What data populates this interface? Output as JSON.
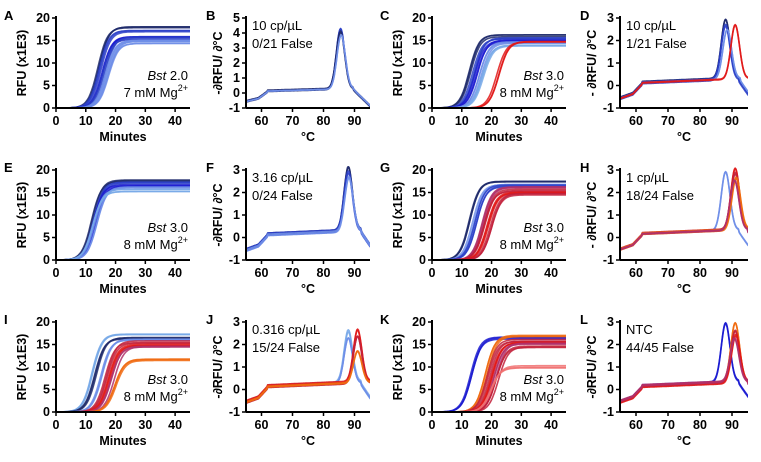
{
  "panels": [
    {
      "letter": "A",
      "kind": "amp",
      "col": 0,
      "row": 0,
      "annot_bst": "Bst",
      "annot_ver": " 2.0",
      "annot_mg": "7 mM Mg",
      "annot_sup": "2+"
    },
    {
      "letter": "B",
      "kind": "melt",
      "col": 1,
      "row": 0,
      "annot1": "10 cp/µL",
      "annot2": "0/21 False"
    },
    {
      "letter": "C",
      "kind": "amp",
      "col": 2,
      "row": 0,
      "annot_bst": "Bst",
      "annot_ver": " 3.0",
      "annot_mg": "8 mM Mg",
      "annot_sup": "2+"
    },
    {
      "letter": "D",
      "kind": "melt",
      "col": 3,
      "row": 0,
      "annot1": "10 cp/µL",
      "annot2": "1/21 False"
    },
    {
      "letter": "E",
      "kind": "amp",
      "col": 0,
      "row": 1,
      "annot_bst": "Bst",
      "annot_ver": " 3.0",
      "annot_mg": "8 mM Mg",
      "annot_sup": "2+"
    },
    {
      "letter": "F",
      "kind": "melt",
      "col": 1,
      "row": 1,
      "annot1": "3.16 cp/µL",
      "annot2": "0/24 False"
    },
    {
      "letter": "G",
      "kind": "amp",
      "col": 2,
      "row": 1,
      "annot_bst": "Bst",
      "annot_ver": " 3.0",
      "annot_mg": "8 mM Mg",
      "annot_sup": "2+"
    },
    {
      "letter": "H",
      "kind": "melt",
      "col": 3,
      "row": 1,
      "annot1": "1 cp/µL",
      "annot2": "18/24 False"
    },
    {
      "letter": "I",
      "kind": "amp",
      "col": 0,
      "row": 2,
      "annot_bst": "Bst",
      "annot_ver": " 3.0",
      "annot_mg": "8 mM Mg",
      "annot_sup": "2+"
    },
    {
      "letter": "J",
      "kind": "melt",
      "col": 1,
      "row": 2,
      "annot1": "0.316 cp/µL",
      "annot2": "15/24 False"
    },
    {
      "letter": "K",
      "kind": "amp",
      "col": 2,
      "row": 2,
      "annot_bst": "Bst",
      "annot_ver": " 3.0",
      "annot_mg": "8 mM Mg",
      "annot_sup": "2+"
    },
    {
      "letter": "L",
      "kind": "melt",
      "col": 3,
      "row": 2,
      "annot1": "NTC",
      "annot2": "44/45 False"
    }
  ],
  "axes": {
    "amp_ylabel": "RFU (x1E3)",
    "amp_xlabel": "Minutes",
    "melt_ylabel": "-∂RFU/ ∂°C",
    "melt_xlabel": "°C"
  },
  "colors": {
    "navy": "#1f2a6b",
    "blue": "#2b3fc8",
    "royal": "#1a1ad0",
    "light_blue": "#6f8ee8",
    "sky": "#78a9e8",
    "red": "#e01818",
    "crimson": "#c2203a",
    "salmon": "#f07070",
    "orange": "#f06a10",
    "magenta": "#b0306a"
  },
  "chart_data": [
    {
      "panel": "A",
      "type": "line",
      "xlabel": "Minutes",
      "ylabel": "RFU (x1E3)",
      "xlim": [
        0,
        45
      ],
      "ylim": [
        0,
        20
      ],
      "xticks": [
        0,
        10,
        20,
        30,
        40
      ],
      "yticks": [
        0,
        5,
        10,
        15,
        20
      ],
      "series": [
        {
          "color": "#1f2a6b",
          "mid": 14.5,
          "plateau": 18
        },
        {
          "color": "#2b3fc8",
          "mid": 15,
          "plateau": 17
        },
        {
          "color": "#1a1ad0",
          "mid": 15.5,
          "plateau": 16
        },
        {
          "color": "#2b3fc8",
          "mid": 16,
          "plateau": 15.5
        },
        {
          "color": "#6f8ee8",
          "mid": 17,
          "plateau": 15
        },
        {
          "color": "#6f8ee8",
          "mid": 17.5,
          "plateau": 14.5
        }
      ]
    },
    {
      "panel": "B",
      "type": "line",
      "xlabel": "°C",
      "ylabel": "-∂RFU/ ∂°C",
      "xlim": [
        55,
        95
      ],
      "ylim": [
        -1,
        5
      ],
      "xticks": [
        60,
        70,
        80,
        90
      ],
      "yticks": [
        -1,
        0,
        1,
        2,
        3,
        4,
        5
      ],
      "series": [
        {
          "color": "#2b3fc8",
          "peak_x": 85.5,
          "peak_y": 4.0
        },
        {
          "color": "#1f2a6b",
          "peak_x": 85.5,
          "peak_y": 3.8
        },
        {
          "color": "#6f8ee8",
          "peak_x": 85.7,
          "peak_y": 3.6
        }
      ]
    },
    {
      "panel": "C",
      "type": "line",
      "xlabel": "Minutes",
      "ylabel": "RFU (x1E3)",
      "xlim": [
        0,
        45
      ],
      "ylim": [
        0,
        20
      ],
      "xticks": [
        0,
        10,
        20,
        30,
        40
      ],
      "yticks": [
        0,
        5,
        10,
        15,
        20
      ],
      "series": [
        {
          "color": "#1f2a6b",
          "mid": 13,
          "plateau": 16
        },
        {
          "color": "#2b3fc8",
          "mid": 14,
          "plateau": 15.5
        },
        {
          "color": "#1a1ad0",
          "mid": 15,
          "plateau": 15
        },
        {
          "color": "#6f8ee8",
          "mid": 16,
          "plateau": 14.5
        },
        {
          "color": "#78a9e8",
          "mid": 17,
          "plateau": 14
        },
        {
          "color": "#e01818",
          "mid": 22,
          "plateau": 14.5
        }
      ]
    },
    {
      "panel": "D",
      "type": "line",
      "xlabel": "°C",
      "ylabel": "- ∂RFU/ ∂°C",
      "xlim": [
        55,
        95
      ],
      "ylim": [
        -1,
        3
      ],
      "xticks": [
        60,
        70,
        80,
        90
      ],
      "yticks": [
        -1,
        0,
        1,
        2,
        3
      ],
      "series": [
        {
          "color": "#1f2a6b",
          "peak_x": 88,
          "peak_y": 2.6
        },
        {
          "color": "#2b3fc8",
          "peak_x": 88,
          "peak_y": 2.4
        },
        {
          "color": "#6f8ee8",
          "peak_x": 88.5,
          "peak_y": 2.2
        },
        {
          "color": "#e01818",
          "peak_x": 91,
          "peak_y": 2.4
        }
      ]
    },
    {
      "panel": "E",
      "type": "line",
      "xlabel": "Minutes",
      "ylabel": "RFU (x1E3)",
      "xlim": [
        0,
        45
      ],
      "ylim": [
        0,
        20
      ],
      "xticks": [
        0,
        10,
        20,
        30,
        40
      ],
      "yticks": [
        0,
        5,
        10,
        15,
        20
      ],
      "series": [
        {
          "color": "#1f2a6b",
          "mid": 12.5,
          "plateau": 17.5
        },
        {
          "color": "#2b3fc8",
          "mid": 13,
          "plateau": 17
        },
        {
          "color": "#1a1ad0",
          "mid": 13,
          "plateau": 16.5
        },
        {
          "color": "#6f8ee8",
          "mid": 13.5,
          "plateau": 16
        },
        {
          "color": "#78a9e8",
          "mid": 12.8,
          "plateau": 15.5
        }
      ]
    },
    {
      "panel": "F",
      "type": "line",
      "xlabel": "°C",
      "ylabel": "-∂RFU/ ∂°C",
      "xlim": [
        55,
        95
      ],
      "ylim": [
        -1,
        3
      ],
      "xticks": [
        60,
        70,
        80,
        90
      ],
      "yticks": [
        -1,
        0,
        1,
        2,
        3
      ],
      "series": [
        {
          "color": "#1f2a6b",
          "peak_x": 88,
          "peak_y": 2.8
        },
        {
          "color": "#2b3fc8",
          "peak_x": 88,
          "peak_y": 2.6
        },
        {
          "color": "#6f8ee8",
          "peak_x": 88.2,
          "peak_y": 2.4
        }
      ]
    },
    {
      "panel": "G",
      "type": "line",
      "xlabel": "Minutes",
      "ylabel": "RFU (x1E3)",
      "xlim": [
        0,
        45
      ],
      "ylim": [
        0,
        20
      ],
      "xticks": [
        0,
        10,
        20,
        30,
        40
      ],
      "yticks": [
        0,
        5,
        10,
        15,
        20
      ],
      "series": [
        {
          "color": "#1f2a6b",
          "mid": 13,
          "plateau": 17.5
        },
        {
          "color": "#6f8ee8",
          "mid": 14,
          "plateau": 17
        },
        {
          "color": "#2b3fc8",
          "mid": 15,
          "plateau": 16.5
        },
        {
          "color": "#b0306a",
          "mid": 17,
          "plateau": 16
        },
        {
          "color": "#c2203a",
          "mid": 18,
          "plateau": 15.5
        },
        {
          "color": "#e01818",
          "mid": 19,
          "plateau": 15
        },
        {
          "color": "#c2203a",
          "mid": 20,
          "plateau": 14.5
        }
      ]
    },
    {
      "panel": "H",
      "type": "line",
      "xlabel": "°C",
      "ylabel": "- ∂RFU/ ∂°C",
      "xlim": [
        55,
        95
      ],
      "ylim": [
        -1,
        3
      ],
      "xticks": [
        60,
        70,
        80,
        90
      ],
      "yticks": [
        -1,
        0,
        1,
        2,
        3
      ],
      "series": [
        {
          "color": "#6f8ee8",
          "peak_x": 88,
          "peak_y": 2.6
        },
        {
          "color": "#e01818",
          "peak_x": 91,
          "peak_y": 2.7
        },
        {
          "color": "#c2203a",
          "peak_x": 91,
          "peak_y": 2.5
        },
        {
          "color": "#f06a10",
          "peak_x": 91.3,
          "peak_y": 2.3
        },
        {
          "color": "#b0306a",
          "peak_x": 90.8,
          "peak_y": 2.2
        }
      ]
    },
    {
      "panel": "I",
      "type": "line",
      "xlabel": "Minutes",
      "ylabel": "RFU (x1E3)",
      "xlim": [
        0,
        45
      ],
      "ylim": [
        0,
        20
      ],
      "xticks": [
        0,
        10,
        20,
        30,
        40
      ],
      "yticks": [
        0,
        5,
        10,
        15,
        20
      ],
      "series": [
        {
          "color": "#78a9e8",
          "mid": 12,
          "plateau": 17
        },
        {
          "color": "#1f2a6b",
          "mid": 13,
          "plateau": 16.5
        },
        {
          "color": "#6f8ee8",
          "mid": 15,
          "plateau": 16
        },
        {
          "color": "#c2203a",
          "mid": 17,
          "plateau": 15.5
        },
        {
          "color": "#e01818",
          "mid": 18,
          "plateau": 15
        },
        {
          "color": "#b0306a",
          "mid": 19,
          "plateau": 14.5
        },
        {
          "color": "#f06a10",
          "mid": 20,
          "plateau": 11.5
        }
      ]
    },
    {
      "panel": "J",
      "type": "line",
      "xlabel": "°C",
      "ylabel": "-∂RFU/ ∂°C",
      "xlim": [
        55,
        95
      ],
      "ylim": [
        -1,
        3
      ],
      "xticks": [
        60,
        70,
        80,
        90
      ],
      "yticks": [
        -1,
        0,
        1,
        2,
        3
      ],
      "series": [
        {
          "color": "#78a9e8",
          "peak_x": 88,
          "peak_y": 2.3
        },
        {
          "color": "#6f8ee8",
          "peak_x": 88,
          "peak_y": 2.0
        },
        {
          "color": "#e01818",
          "peak_x": 91,
          "peak_y": 2.3
        },
        {
          "color": "#c2203a",
          "peak_x": 91,
          "peak_y": 2.1
        },
        {
          "color": "#f06a10",
          "peak_x": 91,
          "peak_y": 1.4
        }
      ]
    },
    {
      "panel": "K",
      "type": "line",
      "xlabel": "Minutes",
      "ylabel": "RFU (x1E3)",
      "xlim": [
        0,
        45
      ],
      "ylim": [
        0,
        20
      ],
      "xticks": [
        0,
        10,
        20,
        30,
        40
      ],
      "yticks": [
        0,
        5,
        10,
        15,
        20
      ],
      "series": [
        {
          "color": "#1a1ad0",
          "mid": 13.5,
          "plateau": 16.5
        },
        {
          "color": "#f06a10",
          "mid": 18,
          "plateau": 17
        },
        {
          "color": "#c2203a",
          "mid": 19,
          "plateau": 16
        },
        {
          "color": "#e01818",
          "mid": 20,
          "plateau": 15.5
        },
        {
          "color": "#b0306a",
          "mid": 21,
          "plateau": 15
        },
        {
          "color": "#c2203a",
          "mid": 22,
          "plateau": 14.5
        },
        {
          "color": "#f07070",
          "mid": 20,
          "plateau": 10
        }
      ]
    },
    {
      "panel": "L",
      "type": "line",
      "xlabel": "°C",
      "ylabel": "-∂RFU/ ∂°C",
      "xlim": [
        55,
        95
      ],
      "ylim": [
        -1,
        3
      ],
      "xticks": [
        60,
        70,
        80,
        90
      ],
      "yticks": [
        -1,
        0,
        1,
        2,
        3
      ],
      "series": [
        {
          "color": "#1a1ad0",
          "peak_x": 88,
          "peak_y": 2.6
        },
        {
          "color": "#f06a10",
          "peak_x": 91,
          "peak_y": 2.6
        },
        {
          "color": "#c2203a",
          "peak_x": 91,
          "peak_y": 2.3
        },
        {
          "color": "#e01818",
          "peak_x": 91.2,
          "peak_y": 2.1
        },
        {
          "color": "#b0306a",
          "peak_x": 90.8,
          "peak_y": 1.9
        }
      ]
    }
  ]
}
